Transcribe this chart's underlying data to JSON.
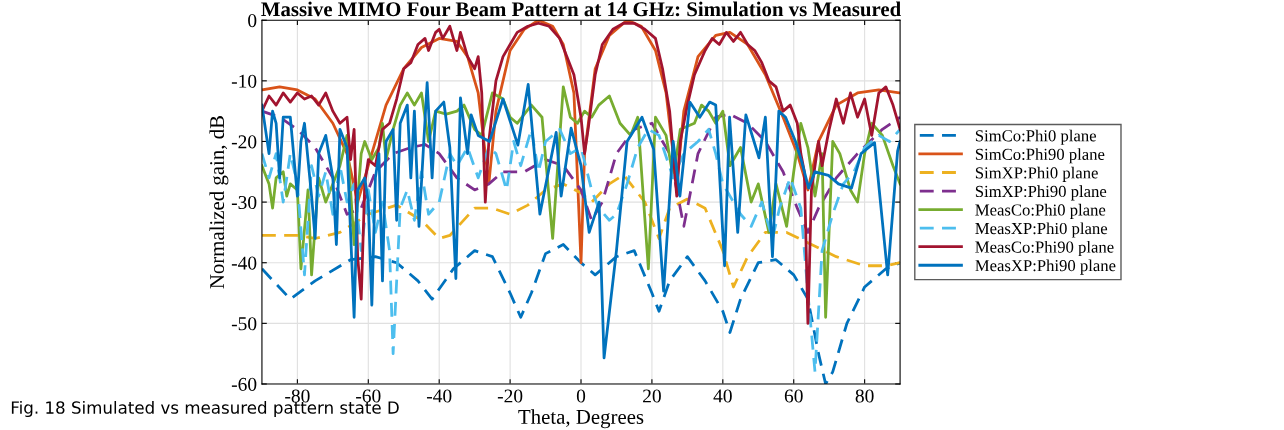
{
  "chart_data": {
    "type": "line",
    "title": "Massive MIMO Four Beam Pattern at 14 GHz: Simulation vs Measured",
    "xlabel": "Theta, Degrees",
    "ylabel": "Normalized gain, dB",
    "xlim": [
      -90,
      90
    ],
    "xticks": [
      -80,
      -60,
      -40,
      -20,
      0,
      20,
      40,
      60,
      80
    ],
    "ylim": [
      -60,
      0
    ],
    "yticks": [
      -60,
      -50,
      -40,
      -30,
      -20,
      -10,
      0
    ],
    "grid": true,
    "legend": "right",
    "marker": "none",
    "annotations": [
      "Fig. 18 Simulated vs measured pattern state D"
    ],
    "series": [
      {
        "name": "SimCo:Phi0 plane",
        "color": "#0072bd",
        "line_style": "dashed",
        "x": [
          -90,
          -82,
          -75,
          -65,
          -58,
          -52,
          -46,
          -42,
          -36,
          -30,
          -25,
          -20,
          -17,
          -14,
          -10,
          -5,
          0,
          4,
          10,
          15,
          20,
          22,
          25,
          30,
          35,
          40,
          42,
          45,
          50,
          55,
          60,
          64,
          67,
          69,
          71,
          75,
          80,
          86,
          90
        ],
        "values": [
          -41,
          -46,
          -43,
          -39.5,
          -39,
          -40,
          -43,
          -46,
          -41,
          -38,
          -39,
          -45,
          -49,
          -45,
          -38.5,
          -37,
          -40,
          -42,
          -39,
          -38,
          -45,
          -48,
          -43,
          -39,
          -43,
          -48,
          -51.5,
          -46,
          -40,
          -39.5,
          -42,
          -46,
          -55,
          -60,
          -58,
          -50,
          -44,
          -41,
          -40
        ]
      },
      {
        "name": "SimCo:Phi90 plane",
        "color": "#d95319",
        "line_style": "solid",
        "x": [
          -90,
          -85,
          -80,
          -75,
          -70,
          -66,
          -63,
          -60,
          -55,
          -50,
          -45,
          -40,
          -35,
          -32,
          -29,
          -27,
          -26,
          -24,
          -20,
          -16,
          -12,
          -8,
          -5,
          -2,
          0,
          1,
          4,
          8,
          13,
          17,
          21,
          24,
          26,
          27,
          29,
          33,
          38,
          42,
          47,
          52,
          57,
          61,
          64,
          67,
          72,
          78,
          84,
          90
        ],
        "values": [
          -11.5,
          -11,
          -11.5,
          -13,
          -17,
          -22,
          -30,
          -24,
          -14,
          -8,
          -4.5,
          -3,
          -3.5,
          -6,
          -12,
          -22,
          -27,
          -15,
          -5,
          -1.5,
          0,
          -1,
          -4,
          -12,
          -40,
          -22,
          -8,
          -2.5,
          0,
          -1,
          -5,
          -12,
          -22,
          -27,
          -15,
          -6,
          -2.5,
          -2,
          -4,
          -9,
          -16,
          -22,
          -28,
          -20,
          -14,
          -12,
          -11.5,
          -12
        ]
      },
      {
        "name": "SimXP:Phi0 plane",
        "color": "#edb120",
        "line_style": "dashed",
        "x": [
          -90,
          -80,
          -75,
          -68,
          -60,
          -52,
          -45,
          -40,
          -37,
          -30,
          -25,
          -20,
          -15,
          -10,
          -5,
          0,
          3,
          8,
          12,
          18,
          22,
          25,
          30,
          35,
          40,
          43,
          47,
          52,
          58,
          65,
          72,
          80,
          86,
          90
        ],
        "values": [
          -35.5,
          -35.5,
          -36,
          -35,
          -32,
          -30.5,
          -33,
          -36,
          -35.5,
          -31,
          -31,
          -32,
          -30.5,
          -28,
          -27,
          -28.5,
          -30,
          -27,
          -25.5,
          -30,
          -36,
          -31,
          -29.5,
          -31,
          -38,
          -44,
          -39,
          -35,
          -35,
          -37,
          -39,
          -40.5,
          -40.5,
          -40
        ]
      },
      {
        "name": "SimXP:Phi90 plane",
        "color": "#7e2f8e",
        "line_style": "dashed",
        "x": [
          -90,
          -85,
          -80,
          -75,
          -70,
          -66,
          -62,
          -58,
          -53,
          -48,
          -44,
          -40,
          -35,
          -30,
          -26,
          -22,
          -16,
          -10,
          -5,
          0,
          3,
          6,
          10,
          15,
          20,
          25,
          27,
          29,
          33,
          38,
          42,
          47,
          52,
          57,
          61,
          64,
          67,
          72,
          78,
          85,
          90
        ],
        "values": [
          -15,
          -16,
          -18,
          -21,
          -26,
          -32,
          -31,
          -25,
          -22,
          -21,
          -20.5,
          -22,
          -26,
          -28,
          -27,
          -25,
          -25,
          -23,
          -24,
          -28,
          -33,
          -30,
          -22,
          -18,
          -17,
          -22,
          -28,
          -34,
          -22,
          -16,
          -15.5,
          -17,
          -20,
          -25,
          -31,
          -35,
          -31,
          -26,
          -22,
          -18,
          -16
        ]
      },
      {
        "name": "MeasCo:Phi0 plane",
        "color": "#77ac30",
        "line_style": "solid",
        "x": [
          -90,
          -88,
          -87,
          -86,
          -84,
          -83,
          -82,
          -80,
          -79,
          -77,
          -76,
          -74,
          -72,
          -70,
          -68,
          -66,
          -64,
          -62,
          -61,
          -59,
          -57,
          -56,
          -55,
          -53,
          -51,
          -49,
          -47,
          -45,
          -43,
          -41,
          -38,
          -35,
          -33,
          -30,
          -28,
          -25,
          -22,
          -20,
          -18,
          -14,
          -11,
          -8,
          -5,
          -3,
          -1,
          1,
          3,
          5,
          8,
          11,
          14,
          16,
          19,
          21,
          24,
          26,
          28,
          32,
          34,
          36,
          38,
          40,
          42,
          45,
          48,
          50,
          53,
          55,
          58,
          60,
          62,
          64,
          66,
          68,
          69,
          71,
          73,
          76,
          78,
          80,
          82,
          85,
          88,
          90
        ],
        "values": [
          -24,
          -27,
          -31,
          -26,
          -25,
          -29,
          -27,
          -28,
          -41,
          -28,
          -42,
          -26,
          -30,
          -27,
          -24,
          -19,
          -37,
          -22,
          -20,
          -23,
          -21,
          -17,
          -23,
          -18,
          -14,
          -12,
          -14,
          -12,
          -20,
          -15,
          -15.5,
          -15,
          -14,
          -18,
          -19,
          -12,
          -13,
          -16,
          -17,
          -14,
          -16,
          -36,
          -11,
          -16,
          -17,
          -15,
          -16,
          -14,
          -12.5,
          -17,
          -19,
          -16,
          -41,
          -16,
          -19,
          -26,
          -18,
          -17,
          -14,
          -15,
          -17,
          -15,
          -24,
          -21,
          -30,
          -27,
          -35,
          -27,
          -34,
          -25,
          -17,
          -21,
          -29,
          -22,
          -49,
          -20,
          -22,
          -28,
          -30,
          -22,
          -17,
          -19,
          -24,
          -27
        ]
      },
      {
        "name": "MeasXP:Phi0 plane",
        "color": "#4dbeee",
        "line_style": "dashed",
        "x": [
          -90,
          -88,
          -86,
          -84,
          -82,
          -80,
          -78,
          -76,
          -74,
          -72,
          -70,
          -68,
          -66,
          -64,
          -62,
          -60,
          -58,
          -56,
          -54,
          -53,
          -51,
          -49,
          -47,
          -45,
          -43,
          -40,
          -37,
          -35,
          -32,
          -29,
          -26,
          -24,
          -21,
          -19,
          -17,
          -14,
          -12,
          -10,
          -6,
          -3,
          0,
          3,
          5,
          8,
          10,
          13,
          16,
          19,
          22,
          26,
          29,
          33,
          36,
          38,
          40,
          42,
          45,
          48,
          51,
          54,
          56,
          59,
          62,
          64,
          66,
          68,
          71,
          74,
          77,
          80,
          84,
          87,
          90
        ],
        "values": [
          -22,
          -26,
          -22,
          -30,
          -22,
          -27,
          -42,
          -24,
          -29,
          -25,
          -32,
          -24,
          -30,
          -27,
          -38,
          -28,
          -35,
          -30,
          -38,
          -55,
          -31,
          -28,
          -33,
          -25,
          -32,
          -30,
          -22,
          -24,
          -21,
          -26,
          -21,
          -22,
          -28,
          -20,
          -24,
          -18,
          -25,
          -20,
          -18,
          -22,
          -21,
          -28,
          -31,
          -33,
          -32,
          -27,
          -21,
          -18,
          -19,
          -26,
          -22,
          -20,
          -18,
          -22,
          -27,
          -29,
          -32,
          -34,
          -30,
          -36,
          -31,
          -26,
          -31,
          -45,
          -58,
          -38,
          -32,
          -27,
          -25,
          -21,
          -19,
          -20,
          -18
        ]
      },
      {
        "name": "MeasCo:Phi90 plane",
        "color": "#a2142f",
        "line_style": "solid",
        "x": [
          -90,
          -88,
          -86,
          -84,
          -82,
          -80,
          -78,
          -76,
          -74,
          -72,
          -70,
          -68,
          -66,
          -65,
          -64,
          -63,
          -62,
          -61,
          -60,
          -58,
          -56,
          -54,
          -52,
          -50,
          -48,
          -46,
          -44,
          -43,
          -41,
          -40,
          -39,
          -37,
          -35,
          -34,
          -32,
          -30,
          -29,
          -28,
          -27,
          -26,
          -24,
          -22,
          -20,
          -18,
          -15,
          -12,
          -9,
          -6,
          -4,
          -2,
          0,
          1,
          2,
          4,
          6,
          9,
          12,
          15,
          18,
          21,
          23,
          25,
          27,
          28,
          30,
          32,
          35,
          37,
          39,
          41,
          43,
          45,
          47,
          49,
          51,
          53,
          55,
          57,
          59,
          61,
          62,
          63,
          64,
          65,
          67,
          68,
          70,
          72,
          74,
          76,
          78,
          80,
          82,
          84,
          86,
          88,
          90
        ],
        "values": [
          -15,
          -12.5,
          -14,
          -12,
          -13.5,
          -12,
          -13,
          -12.5,
          -14,
          -12,
          -15,
          -17,
          -16,
          -23,
          -18,
          -39,
          -46,
          -27,
          -23,
          -24,
          -18,
          -17,
          -13,
          -8,
          -7,
          -4,
          -3,
          -5,
          -2,
          -1.5,
          -3,
          -1,
          -5,
          -2,
          -6,
          -8,
          -6,
          -12,
          -30,
          -20,
          -10,
          -6,
          -4,
          -2,
          -1,
          -0.5,
          -1,
          -3,
          -6,
          -9,
          -16,
          -22,
          -18,
          -9,
          -4,
          -1.5,
          -0.5,
          -0.5,
          -1.5,
          -3,
          -8,
          -15,
          -29,
          -20,
          -14,
          -9,
          -5,
          -3,
          -4,
          -2,
          -3.5,
          -2,
          -4,
          -5,
          -7,
          -10,
          -11,
          -15,
          -14,
          -17,
          -22,
          -25,
          -50,
          -28,
          -20,
          -24,
          -18,
          -13,
          -17,
          -12,
          -16,
          -13,
          -19,
          -12,
          -11,
          -14,
          -18
        ]
      },
      {
        "name": "MeasXP:Phi90 plane",
        "color": "#0072bd",
        "line_style": "solid",
        "x": [
          -90,
          -89,
          -88,
          -87,
          -86,
          -85,
          -84,
          -82,
          -80,
          -79,
          -78,
          -76,
          -75,
          -74,
          -72,
          -70,
          -69,
          -68,
          -66,
          -64,
          -63,
          -61,
          -60,
          -59,
          -58,
          -57,
          -56,
          -55,
          -53,
          -52,
          -51,
          -49,
          -48,
          -47,
          -45.7,
          -43.4,
          -42,
          -41,
          -38.7,
          -37,
          -35.3,
          -34,
          -32,
          -31,
          -29,
          -25.8,
          -22,
          -17.8,
          -14.9,
          -11.6,
          -7,
          -5.6,
          -2.8,
          0,
          2.3,
          5.1,
          6.5,
          10,
          13,
          17.2,
          20.5,
          23.3,
          26,
          27.9,
          30.7,
          33.5,
          36.3,
          38,
          40.5,
          41.9,
          44.2,
          46.5,
          48.8,
          50.2,
          52,
          54,
          55.8,
          57.7,
          60.5,
          62.3,
          64.2,
          66,
          69.8,
          72.6,
          76.3,
          79,
          82.8,
          86.5,
          89.3,
          90
        ],
        "values": [
          -14,
          -18,
          -22,
          -15,
          -17,
          -26,
          -16,
          -16,
          -29,
          -20,
          -17,
          -29,
          -36,
          -22,
          -19,
          -26,
          -37,
          -18,
          -21,
          -49,
          -28,
          -26,
          -30,
          -47,
          -26,
          -22,
          -43,
          -20,
          -18,
          -33,
          -17,
          -14,
          -26,
          -15,
          -34,
          -10.3,
          -26,
          -15,
          -13.5,
          -21,
          -42.6,
          -12.8,
          -22,
          -15.6,
          -19,
          -20,
          -13,
          -20.6,
          -10.6,
          -32,
          -18.5,
          -29,
          -17.8,
          -24,
          -35,
          -30,
          -55.7,
          -38,
          -20,
          -16,
          -21.3,
          -44.7,
          -20,
          -29,
          -13.5,
          -16,
          -13.5,
          -14,
          -40.5,
          -16,
          -35,
          -15.6,
          -20,
          -22.7,
          -16,
          -39,
          -15,
          -16,
          -20,
          -23.4,
          -27.7,
          -25,
          -25.6,
          -27,
          -27.7,
          -22,
          -20.2,
          -42,
          -21.6,
          -20
        ]
      }
    ]
  }
}
